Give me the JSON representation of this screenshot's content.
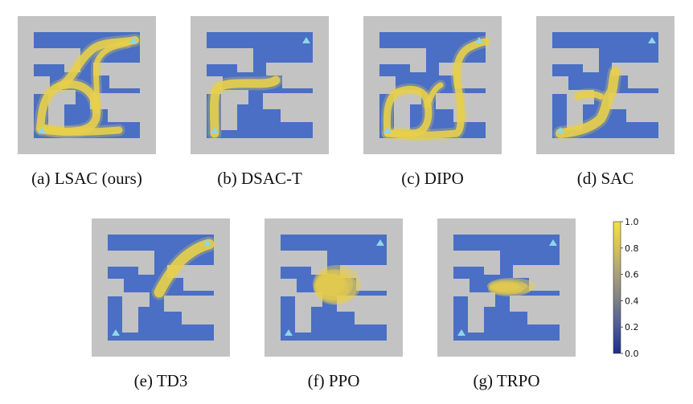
{
  "panels": [
    {
      "caption": "(a) LSAC (ours)",
      "trace": "lsac"
    },
    {
      "caption": "(b) DSAC-T",
      "trace": "dsact"
    },
    {
      "caption": "(c) DIPO",
      "trace": "dipo"
    },
    {
      "caption": "(d) SAC",
      "trace": "sac"
    },
    {
      "caption": "(e) TD3",
      "trace": "td3"
    },
    {
      "caption": "(f) PPO",
      "trace": "ppo"
    },
    {
      "caption": "(g) TRPO",
      "trace": "trpo"
    }
  ],
  "colorbar": {
    "ticks": [
      "1.0",
      "0.8",
      "0.6",
      "0.4",
      "0.2",
      "0.0"
    ],
    "colors": [
      "#1a2f8a",
      "#4a5a9a",
      "#7d7f86",
      "#a9a07a",
      "#d5c25a",
      "#f5e040"
    ]
  },
  "colors": {
    "wall": "#c3c3c3",
    "floor": "#4a6fc4",
    "trajectory": "#e8cf4a",
    "marker": "#8fd6e6"
  }
}
